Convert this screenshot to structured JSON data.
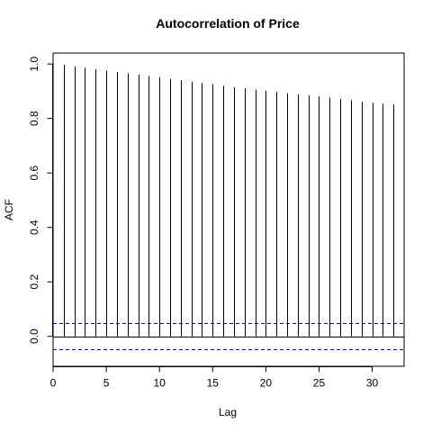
{
  "chart_data": {
    "type": "bar",
    "title": "Autocorrelation of Price",
    "xlabel": "Lag",
    "ylabel": "ACF",
    "x": [
      1,
      2,
      3,
      4,
      5,
      6,
      7,
      8,
      9,
      10,
      11,
      12,
      13,
      14,
      15,
      16,
      17,
      18,
      19,
      20,
      21,
      22,
      23,
      24,
      25,
      26,
      27,
      28,
      29,
      30,
      31,
      32
    ],
    "values": [
      0.997,
      0.991,
      0.986,
      0.981,
      0.976,
      0.971,
      0.966,
      0.961,
      0.956,
      0.951,
      0.946,
      0.941,
      0.935,
      0.93,
      0.926,
      0.92,
      0.915,
      0.911,
      0.906,
      0.902,
      0.897,
      0.893,
      0.889,
      0.885,
      0.881,
      0.877,
      0.872,
      0.867,
      0.862,
      0.858,
      0.854,
      0.851
    ],
    "confidence_band": 0.048,
    "xlim": [
      0,
      33
    ],
    "ylim": [
      -0.11,
      1.04
    ],
    "x_ticks": [
      0,
      5,
      10,
      15,
      20,
      25,
      30
    ],
    "x_tick_labels": [
      "0",
      "5",
      "10",
      "15",
      "20",
      "25",
      "30"
    ],
    "y_ticks": [
      0.0,
      0.2,
      0.4,
      0.6,
      0.8,
      1.0
    ],
    "y_tick_labels": [
      "0.0",
      "0.2",
      "0.4",
      "0.6",
      "0.8",
      "1.0"
    ],
    "zero_line": true,
    "grid": false,
    "colors": {
      "bars": "#000000",
      "confidence": "#0000ee",
      "axes": "#000000"
    }
  }
}
